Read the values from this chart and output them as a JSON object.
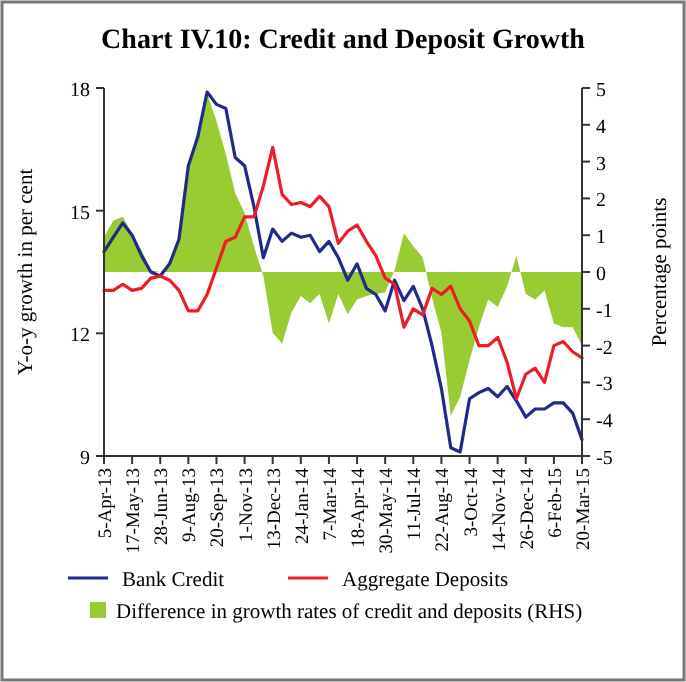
{
  "chart_data": {
    "type": "line",
    "title": "Chart IV.10: Credit and Deposit Growth",
    "ylabel": "Y-o-y growth in per cent",
    "y2label": "Percentage points",
    "categories": [
      "5-Apr-13",
      null,
      null,
      "17-May-13",
      null,
      null,
      "28-Jun-13",
      null,
      null,
      "9-Aug-13",
      null,
      null,
      "20-Sep-13",
      null,
      null,
      "1-Nov-13",
      null,
      null,
      "13-Dec-13",
      null,
      null,
      "24-Jan-14",
      null,
      null,
      "7-Mar-14",
      null,
      null,
      "18-Apr-14",
      null,
      null,
      "30-May-14",
      null,
      null,
      "11-Jul-14",
      null,
      null,
      "22-Aug-14",
      null,
      null,
      "3-Oct-14",
      null,
      null,
      "14-Nov-14",
      null,
      null,
      "26-Dec-14",
      null,
      null,
      "6-Feb-15",
      null,
      null,
      "20-Mar-15"
    ],
    "series": [
      {
        "name": "Difference in growth rates of credit and deposits (RHS)",
        "type": "area",
        "axis": "y2",
        "color": "#99cc33",
        "values": [
          0.95,
          1.4,
          1.5,
          1.05,
          0.6,
          0.05,
          0,
          0.15,
          0.85,
          2.85,
          3.75,
          4.85,
          4.1,
          3.2,
          2.15,
          1.6,
          0.7,
          -0.1,
          -1.65,
          -1.95,
          -1.1,
          -0.65,
          -0.85,
          -0.6,
          -1.4,
          -0.6,
          -1.15,
          -0.75,
          -0.65,
          -0.6,
          -0.55,
          0.05,
          1.05,
          0.7,
          0.4,
          -0.7,
          -1.65,
          -3.9,
          -3.4,
          -2.4,
          -1.5,
          -0.75,
          -0.95,
          -0.4,
          0.45,
          -0.6,
          -0.75,
          -0.5,
          -1.4,
          -1.5,
          -1.5,
          -2.0
        ]
      },
      {
        "name": "Bank Credit",
        "color": "#1f2a8a",
        "values": [
          14.0,
          14.35,
          14.7,
          14.4,
          13.9,
          13.5,
          13.4,
          13.7,
          14.3,
          16.1,
          16.8,
          17.9,
          17.6,
          17.5,
          16.3,
          16.1,
          15.1,
          13.85,
          14.55,
          14.25,
          14.45,
          14.35,
          14.4,
          14.0,
          14.25,
          13.85,
          13.3,
          13.7,
          13.1,
          12.95,
          12.55,
          13.3,
          12.8,
          13.15,
          12.6,
          11.7,
          10.65,
          9.2,
          9.1,
          10.4,
          10.55,
          10.65,
          10.45,
          10.7,
          10.35,
          9.95,
          10.15,
          10.15,
          10.3,
          10.3,
          10.05,
          9.4
        ]
      },
      {
        "name": "Aggregate Deposits",
        "color": "#ee1c25",
        "values": [
          13.05,
          13.05,
          13.2,
          13.05,
          13.1,
          13.35,
          13.4,
          13.3,
          13.05,
          12.55,
          12.55,
          12.95,
          13.6,
          14.25,
          14.35,
          14.85,
          14.85,
          15.6,
          16.55,
          15.4,
          15.15,
          15.2,
          15.1,
          15.35,
          15.1,
          14.2,
          14.5,
          14.65,
          14.25,
          13.9,
          13.35,
          13.2,
          12.15,
          12.6,
          12.45,
          13.1,
          12.95,
          13.15,
          12.6,
          12.3,
          11.7,
          11.7,
          11.9,
          11.3,
          10.4,
          11.0,
          11.15,
          10.8,
          11.7,
          11.8,
          11.55,
          11.4
        ]
      }
    ],
    "ylim": [
      9,
      18
    ],
    "yticks": [
      9,
      12,
      15,
      18
    ],
    "y2lim": [
      -5,
      5
    ],
    "y2ticks": [
      -5,
      -4,
      -3,
      -2,
      -1,
      0,
      1,
      2,
      3,
      4,
      5
    ],
    "grid": false,
    "legend": "bottom"
  }
}
